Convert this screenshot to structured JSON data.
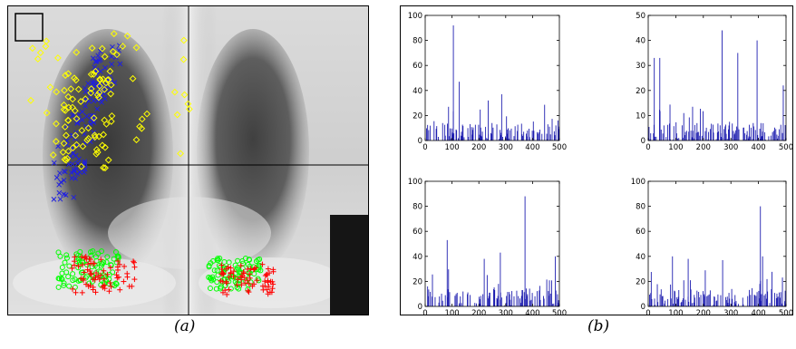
{
  "captions": {
    "a": "(a)",
    "b": "(b)"
  },
  "colors": {
    "series_blue": "#1f1fb0",
    "marker_blue": "#2020e0",
    "marker_yellow": "#ffff00",
    "marker_red": "#ff0000",
    "marker_green": "#00ff00"
  },
  "xray_overlay": {
    "crosshair": "vertical and horizontal black lines",
    "marker_groups": [
      {
        "symbol": "x",
        "color": "blue"
      },
      {
        "symbol": "diamond",
        "color": "yellow"
      },
      {
        "symbol": "plus",
        "color": "red"
      },
      {
        "symbol": "circle",
        "color": "green"
      }
    ]
  },
  "chart_data": [
    {
      "type": "bar",
      "xlim": [
        0,
        500
      ],
      "ylim": [
        0,
        100
      ],
      "xticks": [
        "0",
        "100",
        "200",
        "300",
        "400",
        "500"
      ],
      "yticks": [
        "0",
        "20",
        "40",
        "60",
        "80",
        "100"
      ],
      "peaks": [
        {
          "x": 105,
          "y": 92
        },
        {
          "x": 127,
          "y": 47
        },
        {
          "x": 285,
          "y": 37
        },
        {
          "x": 235,
          "y": 32
        },
        {
          "x": 495,
          "y": 16
        }
      ],
      "baseline": "many small bars mostly below 20"
    },
    {
      "type": "bar",
      "xlim": [
        0,
        500
      ],
      "ylim": [
        0,
        50
      ],
      "xticks": [
        "0",
        "100",
        "200",
        "300",
        "400",
        "500"
      ],
      "yticks": [
        "0",
        "10",
        "20",
        "30",
        "40",
        "50"
      ],
      "peaks": [
        {
          "x": 268,
          "y": 44
        },
        {
          "x": 395,
          "y": 40
        },
        {
          "x": 22,
          "y": 33
        },
        {
          "x": 42,
          "y": 33
        },
        {
          "x": 325,
          "y": 35
        },
        {
          "x": 490,
          "y": 22
        }
      ],
      "baseline": "many small bars mostly below 20"
    },
    {
      "type": "bar",
      "xlim": [
        0,
        500
      ],
      "ylim": [
        0,
        100
      ],
      "xticks": [
        "0",
        "100",
        "200",
        "300",
        "400",
        "500"
      ],
      "yticks": [
        "0",
        "20",
        "40",
        "60",
        "80",
        "100"
      ],
      "peaks": [
        {
          "x": 372,
          "y": 88
        },
        {
          "x": 82,
          "y": 53
        },
        {
          "x": 280,
          "y": 43
        },
        {
          "x": 485,
          "y": 40
        },
        {
          "x": 220,
          "y": 38
        }
      ],
      "baseline": "many small bars mostly below 20"
    },
    {
      "type": "bar",
      "xlim": [
        0,
        500
      ],
      "ylim": [
        0,
        100
      ],
      "xticks": [
        "0",
        "100",
        "200",
        "300",
        "400",
        "500"
      ],
      "yticks": [
        "0",
        "20",
        "40",
        "60",
        "80",
        "100"
      ],
      "peaks": [
        {
          "x": 407,
          "y": 80
        },
        {
          "x": 88,
          "y": 40
        },
        {
          "x": 415,
          "y": 40
        },
        {
          "x": 145,
          "y": 38
        },
        {
          "x": 270,
          "y": 37
        }
      ],
      "baseline": "many small bars mostly below 20"
    }
  ]
}
